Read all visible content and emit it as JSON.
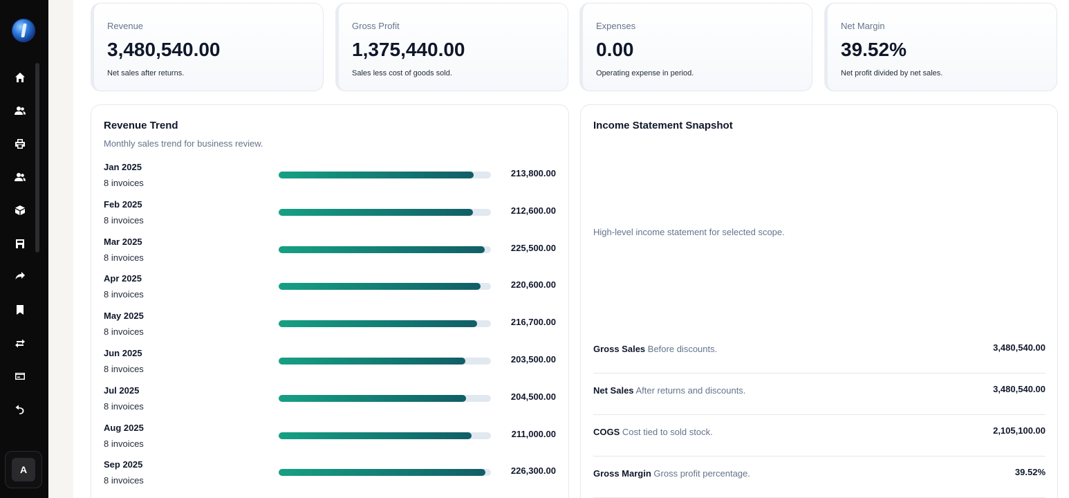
{
  "sidebar": {
    "items": [
      {
        "icon": "home-icon"
      },
      {
        "icon": "users-icon"
      },
      {
        "icon": "printer-icon"
      },
      {
        "icon": "customers-icon"
      },
      {
        "icon": "package-icon"
      },
      {
        "icon": "store-icon"
      },
      {
        "icon": "share-arrow-icon"
      },
      {
        "icon": "bookmark-icon"
      },
      {
        "icon": "transfer-icon"
      },
      {
        "icon": "card-icon"
      },
      {
        "icon": "undo-icon"
      }
    ],
    "avatar_initial": "A"
  },
  "kpis": [
    {
      "label": "Revenue",
      "value": "3,480,540.00",
      "note": "Net sales after returns."
    },
    {
      "label": "Gross Profit",
      "value": "1,375,440.00",
      "note": "Sales less cost of goods sold."
    },
    {
      "label": "Expenses",
      "value": "0.00",
      "note": "Operating expense in period."
    },
    {
      "label": "Net Margin",
      "value": "39.52%",
      "note": "Net profit divided by net sales."
    }
  ],
  "trend": {
    "title": "Revenue Trend",
    "subtitle": "Monthly sales trend for business review.",
    "rows": [
      {
        "month": "Jan 2025",
        "invoices": "8 invoices",
        "amount": "213,800.00",
        "fill": 0.92
      },
      {
        "month": "Feb 2025",
        "invoices": "8 invoices",
        "amount": "212,600.00",
        "fill": 0.915
      },
      {
        "month": "Mar 2025",
        "invoices": "8 invoices",
        "amount": "225,500.00",
        "fill": 0.97
      },
      {
        "month": "Apr 2025",
        "invoices": "8 invoices",
        "amount": "220,600.00",
        "fill": 0.95
      },
      {
        "month": "May 2025",
        "invoices": "8 invoices",
        "amount": "216,700.00",
        "fill": 0.935
      },
      {
        "month": "Jun 2025",
        "invoices": "8 invoices",
        "amount": "203,500.00",
        "fill": 0.88
      },
      {
        "month": "Jul 2025",
        "invoices": "8 invoices",
        "amount": "204,500.00",
        "fill": 0.882
      },
      {
        "month": "Aug 2025",
        "invoices": "8 invoices",
        "amount": "211,000.00",
        "fill": 0.91
      },
      {
        "month": "Sep 2025",
        "invoices": "8 invoices",
        "amount": "226,300.00",
        "fill": 0.975
      }
    ]
  },
  "income": {
    "title": "Income Statement Snapshot",
    "description": "High-level income statement for selected scope.",
    "rows": [
      {
        "name": "Gross Sales",
        "note": "Before discounts.",
        "value": "3,480,540.00"
      },
      {
        "name": "Net Sales",
        "note": "After returns and discounts.",
        "value": "3,480,540.00"
      },
      {
        "name": "COGS",
        "note": "Cost tied to sold stock.",
        "value": "2,105,100.00"
      },
      {
        "name": "Gross Margin",
        "note": "Gross profit percentage.",
        "value": "39.52%"
      }
    ]
  }
}
